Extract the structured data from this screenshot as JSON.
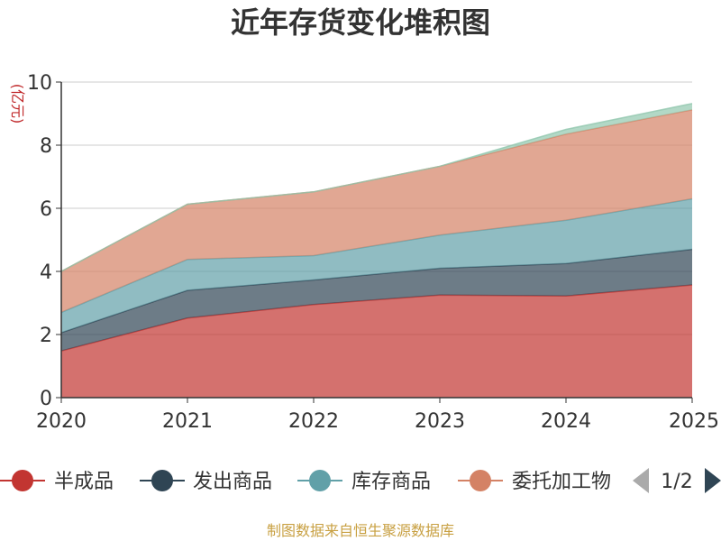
{
  "chart_data": {
    "type": "area",
    "stacked": true,
    "title": "近年存货变化堆积图",
    "ylabel": "(亿元)",
    "xlabel": "",
    "x": [
      "2020",
      "2021",
      "2022",
      "2023",
      "2024",
      "2025"
    ],
    "ylim": [
      0,
      10
    ],
    "yticks": [
      0,
      2,
      4,
      6,
      8,
      10
    ],
    "grid": true,
    "series": [
      {
        "name": "半成品",
        "color": "#c23531",
        "values": [
          1.48,
          2.52,
          2.95,
          3.25,
          3.22,
          3.57
        ]
      },
      {
        "name": "发出商品",
        "color": "#2f4554",
        "values": [
          0.58,
          0.88,
          0.78,
          0.85,
          1.03,
          1.13
        ]
      },
      {
        "name": "库存商品",
        "color": "#61a0a8",
        "values": [
          0.64,
          0.98,
          0.77,
          1.05,
          1.37,
          1.6
        ]
      },
      {
        "name": "委托加工物资",
        "color": "#d48265",
        "values": [
          1.3,
          1.75,
          2.02,
          2.18,
          2.73,
          2.82
        ]
      },
      {
        "name": "",
        "color": "#91c7ae",
        "values": [
          0.0,
          0.0,
          0.0,
          0.0,
          0.15,
          0.2
        ]
      }
    ],
    "legend": {
      "placement": "bottom",
      "visible_labels": [
        "半成品",
        "发出商品",
        "库存商品",
        "委托加工物"
      ],
      "page": "1/2"
    },
    "source": "制图数据来自恒生聚源数据库"
  }
}
